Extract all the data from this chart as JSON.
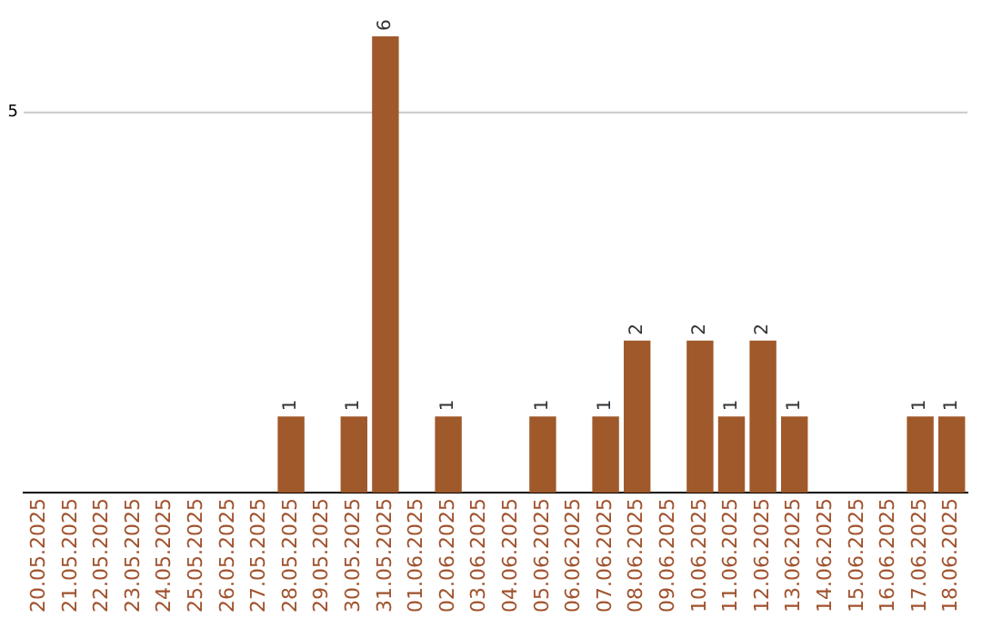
{
  "chart_data": {
    "type": "bar",
    "categories": [
      "20.05.2025",
      "21.05.2025",
      "22.05.2025",
      "23.05.2025",
      "24.05.2025",
      "25.05.2025",
      "26.05.2025",
      "27.05.2025",
      "28.05.2025",
      "29.05.2025",
      "30.05.2025",
      "31.05.2025",
      "01.06.2025",
      "02.06.2025",
      "03.06.2025",
      "04.06.2025",
      "05.06.2025",
      "06.06.2025",
      "07.06.2025",
      "08.06.2025",
      "09.06.2025",
      "10.06.2025",
      "11.06.2025",
      "12.06.2025",
      "13.06.2025",
      "14.06.2025",
      "15.06.2025",
      "16.06.2025",
      "17.06.2025",
      "18.06.2025"
    ],
    "values": [
      0,
      0,
      0,
      0,
      0,
      0,
      0,
      0,
      1,
      0,
      1,
      6,
      0,
      1,
      0,
      0,
      1,
      0,
      1,
      2,
      0,
      2,
      1,
      2,
      1,
      0,
      0,
      0,
      1,
      1
    ],
    "value_labels": [
      null,
      null,
      null,
      null,
      null,
      null,
      null,
      null,
      "1",
      null,
      "1",
      "6",
      null,
      "1",
      null,
      null,
      "1",
      null,
      "1",
      "2",
      null,
      "2",
      "1",
      "2",
      "1",
      null,
      null,
      null,
      "1",
      "1"
    ],
    "color": "#a0592a",
    "ref_lines": [
      {
        "axis": "y",
        "value": 5,
        "label": "5",
        "color": "#c8c8c8"
      }
    ],
    "legend": false
  }
}
